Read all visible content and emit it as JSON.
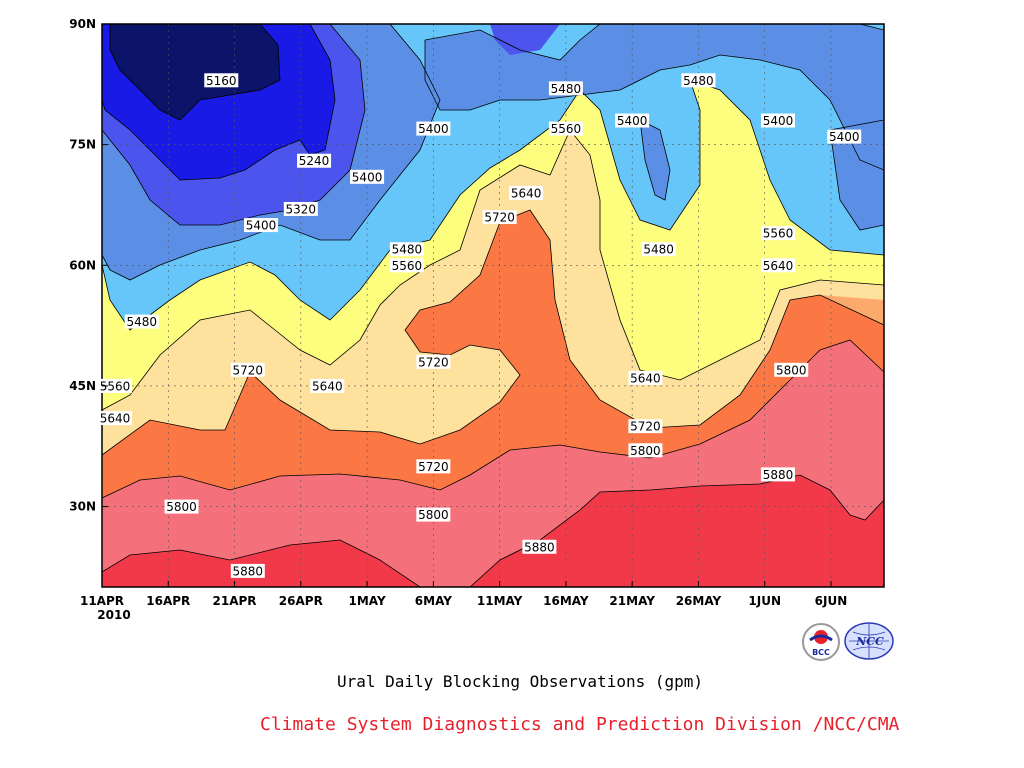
{
  "chart_data": {
    "type": "contour",
    "caption": "Ural Daily Blocking Observations (gpm)",
    "credit": "Climate System Diagnostics and Prediction Division /NCC/CMA",
    "x_ticks": [
      "11APR",
      "16APR",
      "21APR",
      "26APR",
      "1MAY",
      "6MAY",
      "11MAY",
      "16MAY",
      "21MAY",
      "26MAY",
      "1JUN",
      "6JUN"
    ],
    "x_year": "2010",
    "y_ticks": [
      "90N",
      "75N",
      "60N",
      "45N",
      "30N"
    ],
    "xlim": [
      "2010-04-11",
      "2010-06-09"
    ],
    "ylim_deg": [
      20,
      90
    ],
    "levels": [
      5160,
      5240,
      5320,
      5400,
      5480,
      5560,
      5640,
      5720,
      5800,
      5880
    ],
    "colors": {
      "lt5160": "#0b1468",
      "5160": "#1a1ae6",
      "5240": "#4b55ee",
      "5320": "#5b8fe6",
      "5400": "#66c6fa",
      "5480": "#fdfd7e",
      "5560": "#fde19d",
      "5640": "#fcaa6b",
      "5720": "#fb7844",
      "5800": "#f4717c",
      "5880": "#f2394a"
    },
    "contour_labels": [
      {
        "text": "5160",
        "date": "2010-04-20",
        "lat": 83
      },
      {
        "text": "5240",
        "date": "2010-04-27",
        "lat": 73
      },
      {
        "text": "5320",
        "date": "2010-04-26",
        "lat": 67
      },
      {
        "text": "5400",
        "date": "2010-04-23",
        "lat": 65
      },
      {
        "text": "5400",
        "date": "2010-05-01",
        "lat": 71
      },
      {
        "text": "5400",
        "date": "2010-05-06",
        "lat": 77
      },
      {
        "text": "5480",
        "date": "2010-04-14",
        "lat": 53
      },
      {
        "text": "5480",
        "date": "2010-05-04",
        "lat": 62
      },
      {
        "text": "5560",
        "date": "2010-05-04",
        "lat": 60
      },
      {
        "text": "5480",
        "date": "2010-05-16",
        "lat": 82
      },
      {
        "text": "5560",
        "date": "2010-05-16",
        "lat": 77
      },
      {
        "text": "5640",
        "date": "2010-05-13",
        "lat": 69
      },
      {
        "text": "5720",
        "date": "2010-05-11",
        "lat": 66
      },
      {
        "text": "5400",
        "date": "2010-05-21",
        "lat": 78
      },
      {
        "text": "5480",
        "date": "2010-05-26",
        "lat": 83
      },
      {
        "text": "5480",
        "date": "2010-05-23",
        "lat": 62
      },
      {
        "text": "5400",
        "date": "2010-06-01",
        "lat": 78
      },
      {
        "text": "5400",
        "date": "2010-06-06",
        "lat": 76
      },
      {
        "text": "5560",
        "date": "2010-06-01",
        "lat": 64
      },
      {
        "text": "5640",
        "date": "2010-06-01",
        "lat": 60
      },
      {
        "text": "5800",
        "date": "2010-06-02",
        "lat": 47
      },
      {
        "text": "5880",
        "date": "2010-06-01",
        "lat": 34
      },
      {
        "text": "5560",
        "date": "2010-04-11",
        "lat": 45
      },
      {
        "text": "5640",
        "date": "2010-04-11",
        "lat": 41
      },
      {
        "text": "5720",
        "date": "2010-04-22",
        "lat": 47
      },
      {
        "text": "5640",
        "date": "2010-04-28",
        "lat": 45
      },
      {
        "text": "5720",
        "date": "2010-05-06",
        "lat": 48
      },
      {
        "text": "5720",
        "date": "2010-05-06",
        "lat": 35
      },
      {
        "text": "5800",
        "date": "2010-04-17",
        "lat": 30
      },
      {
        "text": "5800",
        "date": "2010-05-06",
        "lat": 29
      },
      {
        "text": "5880",
        "date": "2010-04-22",
        "lat": 22
      },
      {
        "text": "5880",
        "date": "2010-05-14",
        "lat": 25
      },
      {
        "text": "5640",
        "date": "2010-05-22",
        "lat": 46
      },
      {
        "text": "5720",
        "date": "2010-05-22",
        "lat": 40
      },
      {
        "text": "5800",
        "date": "2010-05-22",
        "lat": 37
      }
    ]
  },
  "logos": [
    {
      "name": "bcc-logo",
      "text": "BCC"
    },
    {
      "name": "ncc-logo",
      "text": "NCC"
    }
  ]
}
